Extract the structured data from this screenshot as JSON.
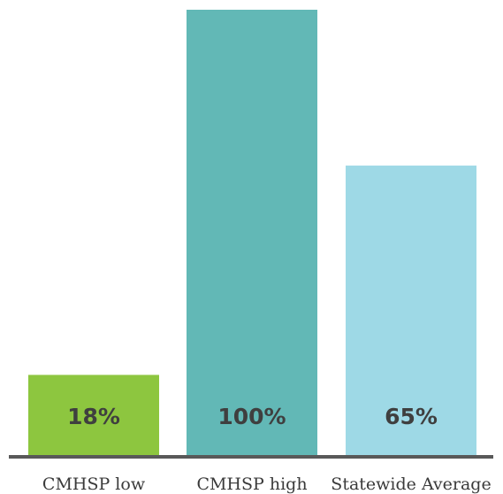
{
  "chart_data": {
    "type": "bar",
    "categories": [
      "CMHSP low",
      "CMHSP high",
      "Statewide Average"
    ],
    "values": [
      18,
      100,
      65
    ],
    "value_labels": [
      "18%",
      "100%",
      "65%"
    ],
    "colors": [
      "#8dc63f",
      "#62b8b6",
      "#9ed9e6"
    ],
    "ylim": [
      0,
      100
    ],
    "grid": false,
    "legend": "none",
    "axis_color": "#595959"
  }
}
